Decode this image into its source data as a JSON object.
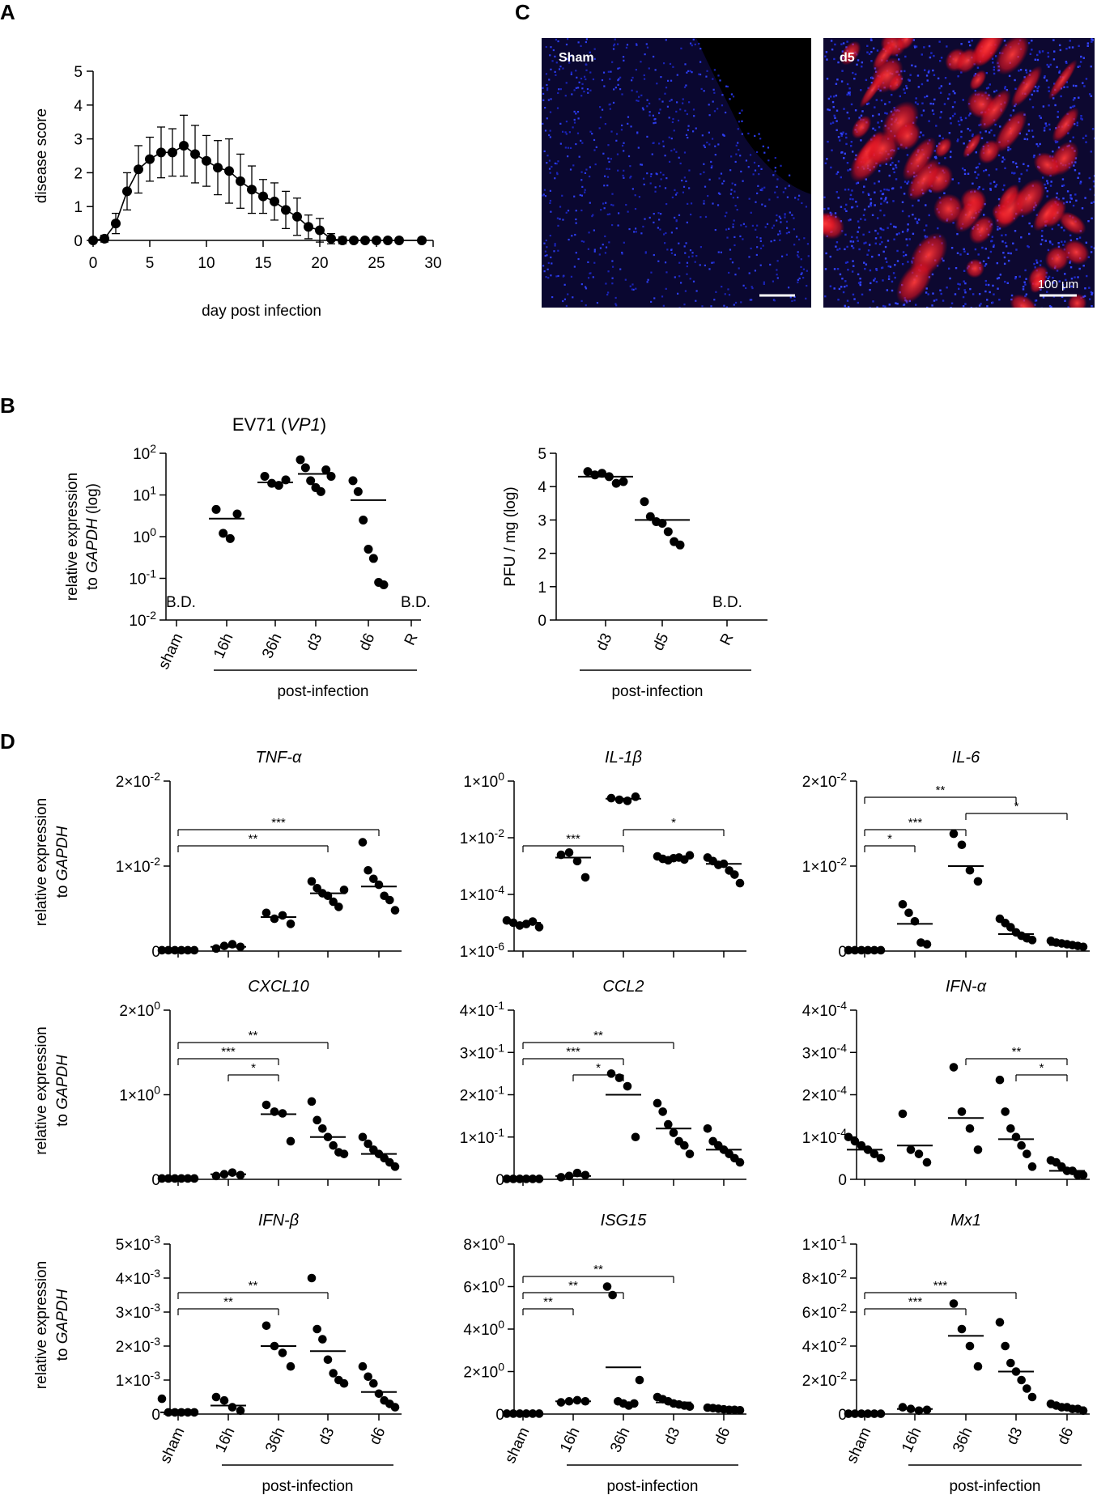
{
  "panel_labels": {
    "A": "A",
    "B": "B",
    "C": "C",
    "D": "D"
  },
  "chart_data": [
    {
      "id": "A",
      "type": "line",
      "xlabel": "day post infection",
      "ylabel": "disease score",
      "xlim": [
        0,
        30
      ],
      "ylim": [
        0,
        5
      ],
      "xticks": [
        "0",
        "5",
        "10",
        "15",
        "20",
        "25",
        "30"
      ],
      "yticks": [
        "0",
        "1",
        "2",
        "3",
        "4",
        "5"
      ],
      "x": [
        0,
        1,
        2,
        3,
        4,
        5,
        6,
        7,
        8,
        9,
        10,
        11,
        12,
        13,
        14,
        15,
        16,
        17,
        18,
        19,
        20,
        21,
        22,
        23,
        24,
        25,
        26,
        27,
        29
      ],
      "y": [
        0,
        0.05,
        0.5,
        1.45,
        2.1,
        2.4,
        2.6,
        2.6,
        2.8,
        2.55,
        2.35,
        2.15,
        2.05,
        1.75,
        1.5,
        1.3,
        1.15,
        0.9,
        0.7,
        0.4,
        0.3,
        0.05,
        0,
        0,
        0,
        0,
        0,
        0,
        0
      ],
      "err": [
        0,
        0.1,
        0.3,
        0.55,
        0.7,
        0.65,
        0.75,
        0.7,
        0.9,
        0.85,
        0.75,
        0.8,
        0.95,
        0.8,
        0.7,
        0.5,
        0.55,
        0.55,
        0.55,
        0.35,
        0.35,
        0.15,
        0.1,
        0,
        0,
        0,
        0,
        0,
        0
      ]
    },
    {
      "id": "B1",
      "type": "scatter",
      "scale": "log",
      "title_plain": "EV71 (",
      "title_italic": "VP1",
      "title_end": ")",
      "ylabel_line1": "relative expression",
      "ylabel_line2_pre": "to ",
      "ylabel_line2_italic": "GAPDH",
      "ylabel_line2_post": " (log)",
      "ylim": [
        -2,
        2
      ],
      "yticks": [
        {
          "base": "10",
          "exp": "2"
        },
        {
          "base": "10",
          "exp": "1"
        },
        {
          "base": "10",
          "exp": "0"
        },
        {
          "base": "10",
          "exp": "-1"
        },
        {
          "base": "10",
          "exp": "-2"
        }
      ],
      "categories": [
        "sham",
        "16h",
        "36h",
        "d3",
        "d6",
        "R"
      ],
      "group_label": "post-infection",
      "bd_label": "B.D.",
      "values": [
        [],
        [
          4.5,
          1.2,
          0.9,
          3.5
        ],
        [
          28,
          19,
          17,
          23
        ],
        [
          70,
          45,
          22,
          15,
          12,
          40,
          28
        ],
        [
          22,
          12,
          2.5,
          0.5,
          0.3,
          0.08,
          0.07
        ],
        []
      ],
      "means": [
        null,
        2.7,
        20,
        32,
        7.5,
        null
      ]
    },
    {
      "id": "B2",
      "type": "scatter",
      "ylabel": "PFU / mg (log)",
      "ylim": [
        0,
        5
      ],
      "yticks": [
        "5",
        "4",
        "3",
        "2",
        "1",
        "0"
      ],
      "categories": [
        "d3",
        "d5",
        "R"
      ],
      "group_label": "post-infection",
      "bd_label": "B.D.",
      "values": [
        [
          4.45,
          4.35,
          4.4,
          4.3,
          4.1,
          4.15
        ],
        [
          3.55,
          3.1,
          2.95,
          2.9,
          2.65,
          2.35,
          2.25
        ]
      ],
      "means": [
        4.3,
        3.0
      ]
    }
  ],
  "micrographs": {
    "left_label": "Sham",
    "right_label": "d5",
    "scale_bar": "100 μm"
  },
  "panel_d": {
    "ylabel_line1": "relative expression",
    "ylabel_line2_pre": "to ",
    "ylabel_line2_italic": "GAPDH",
    "categories": [
      "sham",
      "16h",
      "36h",
      "d3",
      "d6"
    ],
    "group_label": "post-infection",
    "charts": [
      {
        "title": "TNF-α",
        "ymax": 0.02,
        "ticks": [
          {
            "m": "2",
            "e": "-2",
            "v": 0.02
          },
          {
            "m": "1",
            "e": "-2",
            "v": 0.01
          },
          {
            "plain": "0",
            "v": 0
          }
        ],
        "values": [
          [
            0.0001,
            0.0001,
            0.0001,
            0.0001,
            0.0001,
            0.0001
          ],
          [
            0.0003,
            0.0006,
            0.0008,
            0.0005
          ],
          [
            0.0045,
            0.0038,
            0.0042,
            0.0032
          ],
          [
            0.0082,
            0.0074,
            0.0068,
            0.0065,
            0.0058,
            0.0052,
            0.0072
          ],
          [
            0.0128,
            0.0095,
            0.0085,
            0.0078,
            0.0065,
            0.006,
            0.0048
          ]
        ],
        "means": [
          0.0001,
          0.0005,
          0.004,
          0.0068,
          0.0076
        ],
        "sig": [
          {
            "from": 0,
            "to": 3,
            "label": "**"
          },
          {
            "from": 0,
            "to": 4,
            "label": "***"
          }
        ]
      },
      {
        "title": "IL-1β",
        "scale": "log",
        "logmin": -6,
        "logmax": 0,
        "ticks": [
          {
            "m": "1",
            "e": "0",
            "lv": 0
          },
          {
            "m": "1",
            "e": "-2",
            "lv": -2
          },
          {
            "m": "1",
            "e": "-4",
            "lv": -4
          },
          {
            "m": "1",
            "e": "-6",
            "lv": -6
          }
        ],
        "values": [
          [
            1.2e-05,
            1e-05,
            8e-06,
            9e-06,
            1.1e-05,
            7e-06
          ],
          [
            0.0025,
            0.003,
            0.0015,
            0.0004
          ],
          [
            0.25,
            0.22,
            0.2,
            0.28
          ],
          [
            0.0022,
            0.0018,
            0.0016,
            0.0019,
            0.002,
            0.0017,
            0.0024
          ],
          [
            0.002,
            0.0015,
            0.0011,
            0.0012,
            0.0007,
            0.0005,
            0.00025
          ]
        ],
        "means": [
          1e-05,
          0.002,
          0.24,
          0.0019,
          0.0012
        ],
        "sig": [
          {
            "from": 0,
            "to": 2,
            "label": "***"
          },
          {
            "from": 2,
            "to": 4,
            "label": "*"
          }
        ]
      },
      {
        "title": "IL-6",
        "ymax": 0.02,
        "ticks": [
          {
            "m": "2",
            "e": "-2",
            "v": 0.02
          },
          {
            "m": "1",
            "e": "-2",
            "v": 0.01
          },
          {
            "plain": "0",
            "v": 0
          }
        ],
        "values": [
          [
            0.0001,
            0.0001,
            0.0001,
            0.0001,
            0.0001,
            0.0001
          ],
          [
            0.0055,
            0.0045,
            0.0035,
            0.001,
            0.0008
          ],
          [
            0.0138,
            0.0125,
            0.0095,
            0.0082
          ],
          [
            0.0038,
            0.0033,
            0.0028,
            0.0022,
            0.0018,
            0.0015,
            0.0013
          ],
          [
            0.0012,
            0.001,
            0.0009,
            0.0008,
            0.0007,
            0.0006,
            0.0005
          ]
        ],
        "means": [
          0.0001,
          0.0032,
          0.01,
          0.002,
          0.0007
        ],
        "sig": [
          {
            "from": 0,
            "to": 1,
            "label": "*"
          },
          {
            "from": 0,
            "to": 3,
            "label": "**"
          },
          {
            "from": 0,
            "to": 2,
            "label": "***"
          },
          {
            "from": 2,
            "to": 4,
            "label": "*"
          }
        ]
      },
      {
        "title": "CXCL10",
        "ymax": 2,
        "ticks": [
          {
            "m": "2",
            "e": "0",
            "v": 2
          },
          {
            "m": "1",
            "e": "0",
            "v": 1
          },
          {
            "plain": "0",
            "v": 0
          }
        ],
        "values": [
          [
            0.01,
            0.01,
            0.01,
            0.01,
            0.01,
            0.01
          ],
          [
            0.04,
            0.06,
            0.08,
            0.05
          ],
          [
            0.88,
            0.8,
            0.78,
            0.45
          ],
          [
            0.92,
            0.7,
            0.6,
            0.5,
            0.4,
            0.32,
            0.3
          ],
          [
            0.5,
            0.42,
            0.35,
            0.3,
            0.25,
            0.2,
            0.15
          ]
        ],
        "means": [
          0.01,
          0.06,
          0.77,
          0.5,
          0.3
        ],
        "sig": [
          {
            "from": 1,
            "to": 2,
            "label": "*"
          },
          {
            "from": 0,
            "to": 2,
            "label": "***"
          },
          {
            "from": 0,
            "to": 3,
            "label": "**"
          }
        ]
      },
      {
        "title": "CCL2",
        "ymax": 0.4,
        "ticks": [
          {
            "m": "4",
            "e": "-1",
            "v": 0.4
          },
          {
            "m": "3",
            "e": "-1",
            "v": 0.3
          },
          {
            "m": "2",
            "e": "-1",
            "v": 0.2
          },
          {
            "m": "1",
            "e": "-1",
            "v": 0.1
          },
          {
            "plain": "0",
            "v": 0
          }
        ],
        "values": [
          [
            0.001,
            0.001,
            0.001,
            0.001,
            0.001,
            0.001
          ],
          [
            0.005,
            0.008,
            0.015,
            0.01
          ],
          [
            0.25,
            0.24,
            0.22,
            0.1
          ],
          [
            0.18,
            0.16,
            0.13,
            0.11,
            0.09,
            0.08,
            0.06
          ],
          [
            0.12,
            0.09,
            0.08,
            0.07,
            0.06,
            0.05,
            0.04
          ]
        ],
        "means": [
          0.001,
          0.008,
          0.2,
          0.12,
          0.07
        ],
        "sig": [
          {
            "from": 1,
            "to": 2,
            "label": "*"
          },
          {
            "from": 0,
            "to": 2,
            "label": "***"
          },
          {
            "from": 0,
            "to": 3,
            "label": "**"
          }
        ]
      },
      {
        "title": "IFN-α",
        "ymax": 0.0004,
        "ticks": [
          {
            "m": "4",
            "e": "-4",
            "v": 0.0004
          },
          {
            "m": "3",
            "e": "-4",
            "v": 0.0003
          },
          {
            "m": "2",
            "e": "-4",
            "v": 0.0002
          },
          {
            "m": "1",
            "e": "-4",
            "v": 0.0001
          },
          {
            "plain": "0",
            "v": 0
          }
        ],
        "values": [
          [
            0.0001,
            9e-05,
            8e-05,
            7e-05,
            6e-05,
            5e-05
          ],
          [
            0.000155,
            7e-05,
            6e-05,
            4e-05
          ],
          [
            0.000265,
            0.00016,
            0.00012,
            7e-05
          ],
          [
            0.000235,
            0.00016,
            0.00012,
            0.0001,
            8e-05,
            6e-05,
            3e-05
          ],
          [
            4.5e-05,
            4e-05,
            3e-05,
            2e-05,
            2e-05,
            1e-05,
            1e-05
          ]
        ],
        "means": [
          7e-05,
          8e-05,
          0.000145,
          9.5e-05,
          2e-05
        ],
        "sig": [
          {
            "from": 3,
            "to": 4,
            "label": "*"
          },
          {
            "from": 2,
            "to": 4,
            "label": "**"
          }
        ]
      },
      {
        "title": "IFN-β",
        "ymax": 0.005,
        "ticks": [
          {
            "m": "5",
            "e": "-3",
            "v": 0.005
          },
          {
            "m": "4",
            "e": "-3",
            "v": 0.004
          },
          {
            "m": "3",
            "e": "-3",
            "v": 0.003
          },
          {
            "m": "2",
            "e": "-3",
            "v": 0.002
          },
          {
            "m": "1",
            "e": "-3",
            "v": 0.001
          },
          {
            "plain": "0",
            "v": 0
          }
        ],
        "values": [
          [
            0.00045,
            5e-05,
            5e-05,
            5e-05,
            5e-05,
            5e-05
          ],
          [
            0.0005,
            0.0004,
            0.0002,
            0.0001
          ],
          [
            0.0026,
            0.002,
            0.0018,
            0.0014
          ],
          [
            0.004,
            0.0025,
            0.0022,
            0.0016,
            0.0012,
            0.001,
            0.0009
          ],
          [
            0.0014,
            0.0011,
            0.0009,
            0.0006,
            0.0004,
            0.0003,
            0.0002
          ]
        ],
        "means": [
          5e-05,
          0.00025,
          0.002,
          0.00185,
          0.00065
        ],
        "sig": [
          {
            "from": 0,
            "to": 2,
            "label": "**"
          },
          {
            "from": 0,
            "to": 3,
            "label": "**"
          }
        ]
      },
      {
        "title": "ISG15",
        "ymax": 8,
        "ticks": [
          {
            "m": "8",
            "e": "0",
            "v": 8
          },
          {
            "m": "6",
            "e": "0",
            "v": 6
          },
          {
            "m": "4",
            "e": "0",
            "v": 4
          },
          {
            "m": "2",
            "e": "0",
            "v": 2
          },
          {
            "plain": "0",
            "v": 0
          }
        ],
        "values": [
          [
            0.02,
            0.02,
            0.02,
            0.02,
            0.02,
            0.02
          ],
          [
            0.55,
            0.6,
            0.65,
            0.6
          ],
          [
            6,
            5.6,
            0.6,
            0.5,
            0.4,
            0.5,
            1.6
          ],
          [
            0.8,
            0.7,
            0.6,
            0.5,
            0.45,
            0.4,
            0.35
          ],
          [
            0.3,
            0.28,
            0.25,
            0.22,
            0.2,
            0.2,
            0.18
          ]
        ],
        "means": [
          0.02,
          0.6,
          2.2,
          0.55,
          0.25
        ],
        "sig": [
          {
            "from": 0,
            "to": 1,
            "label": "**"
          },
          {
            "from": 0,
            "to": 2,
            "label": "**"
          },
          {
            "from": 0,
            "to": 3,
            "label": "**"
          }
        ]
      },
      {
        "title": "Mx1",
        "ymax": 0.1,
        "ticks": [
          {
            "m": "1",
            "e": "-1",
            "v": 0.1
          },
          {
            "m": "8",
            "e": "-2",
            "v": 0.08
          },
          {
            "m": "6",
            "e": "-2",
            "v": 0.06
          },
          {
            "m": "4",
            "e": "-2",
            "v": 0.04
          },
          {
            "m": "2",
            "e": "-2",
            "v": 0.02
          },
          {
            "plain": "0",
            "v": 0
          }
        ],
        "values": [
          [
            0.0002,
            0.0002,
            0.0002,
            0.0002,
            0.0002,
            0.0002
          ],
          [
            0.004,
            0.003,
            0.002,
            0.0025
          ],
          [
            0.065,
            0.05,
            0.04,
            0.028
          ],
          [
            0.054,
            0.04,
            0.03,
            0.025,
            0.02,
            0.015,
            0.01
          ],
          [
            0.006,
            0.005,
            0.004,
            0.004,
            0.003,
            0.003,
            0.002
          ]
        ],
        "means": [
          0.0002,
          0.003,
          0.046,
          0.025,
          0.004
        ],
        "sig": [
          {
            "from": 0,
            "to": 2,
            "label": "***"
          },
          {
            "from": 0,
            "to": 3,
            "label": "***"
          }
        ]
      }
    ]
  }
}
